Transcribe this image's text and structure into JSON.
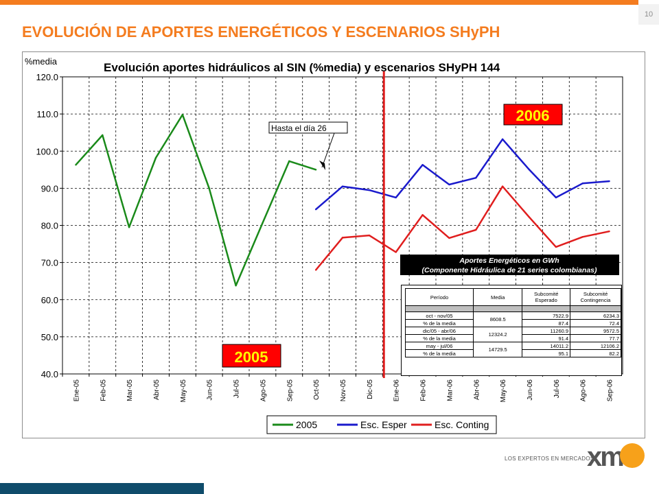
{
  "page": {
    "number": "10",
    "title": "EVOLUCIÓN DE APORTES ENERGÉTICOS Y ESCENARIOS SHyPH"
  },
  "logo": {
    "tagline": "LOS EXPERTOS EN MERCADOS",
    "mark": "xm"
  },
  "chart_data": {
    "type": "line",
    "title": "Evolución aportes hidráulicos al SIN (%media) y escenarios SHyPH 144",
    "ylabel": "%media",
    "xlabel": "",
    "ylim": [
      40,
      120
    ],
    "yticks": [
      "40.0",
      "50.0",
      "60.0",
      "70.0",
      "80.0",
      "90.0",
      "100.0",
      "110.0",
      "120.0"
    ],
    "categories": [
      "Ene-05",
      "Feb-05",
      "Mar-05",
      "Abr-05",
      "May-05",
      "Jun-05",
      "Jul-05",
      "Ago-05",
      "Sep-05",
      "Oct-05",
      "Nov-05",
      "Dic-05",
      "Ene-06",
      "Feb-06",
      "Mar-06",
      "Abr-06",
      "May-06",
      "Jun-06",
      "Jul-06",
      "Ago-06",
      "Sep-06"
    ],
    "grid": true,
    "legend_position": "bottom",
    "series": [
      {
        "name": "2005",
        "color": "#1a8a1a",
        "values": [
          96.3,
          104.3,
          79.5,
          98.2,
          109.8,
          90.0,
          63.8,
          80.6,
          97.3,
          95.0,
          null,
          null,
          null,
          null,
          null,
          null,
          null,
          null,
          null,
          null,
          null
        ]
      },
      {
        "name": "Esc. Esper",
        "color": "#1a1acc",
        "values": [
          null,
          null,
          null,
          null,
          null,
          null,
          null,
          null,
          null,
          84.3,
          90.5,
          89.5,
          87.5,
          96.3,
          91.0,
          92.8,
          103.2,
          95.0,
          87.5,
          91.3,
          91.9
        ]
      },
      {
        "name": "Esc. Conting",
        "color": "#e01e1e",
        "values": [
          null,
          null,
          null,
          null,
          null,
          null,
          null,
          null,
          null,
          68.0,
          76.7,
          77.3,
          72.8,
          82.8,
          76.6,
          78.8,
          90.5,
          82.2,
          74.2,
          76.9,
          78.4
        ]
      }
    ],
    "annotations": {
      "callout": "Hasta el día 26",
      "label_2005": "2005",
      "label_2006": "2006",
      "divider_after_category": "Dic-05"
    },
    "colors": {
      "label_box_bg": "#ff0000",
      "label_box_text": "#ffff00",
      "divider": "#e01e1e"
    }
  },
  "info_box": {
    "title_line1": "Aportes Energéticos en GWh",
    "title_line2": "(Componente Hidráulica de 21 series colombianas)",
    "headers": [
      "Período",
      "Media",
      "Subcomité Esperado",
      "Subcomité Contingencia"
    ],
    "rows": [
      {
        "period": "oct - nov/05",
        "media": "8608.5",
        "esperado": "7522.9",
        "contingencia": "6234.3",
        "pct_label": "% de la media",
        "pct_esperado": "87.4",
        "pct_contingencia": "72.4"
      },
      {
        "period": "dic/05 - abr/06",
        "media": "12324.2",
        "esperado": "11260.9",
        "contingencia": "9572.5",
        "pct_label": "% de la media",
        "pct_esperado": "91.4",
        "pct_contingencia": "77.7"
      },
      {
        "period": "may - jul/06",
        "media": "14729.5",
        "esperado": "14011.2",
        "contingencia": "12106.2",
        "pct_label": "% de la media",
        "pct_esperado": "95.1",
        "pct_contingencia": "82.2"
      }
    ]
  }
}
